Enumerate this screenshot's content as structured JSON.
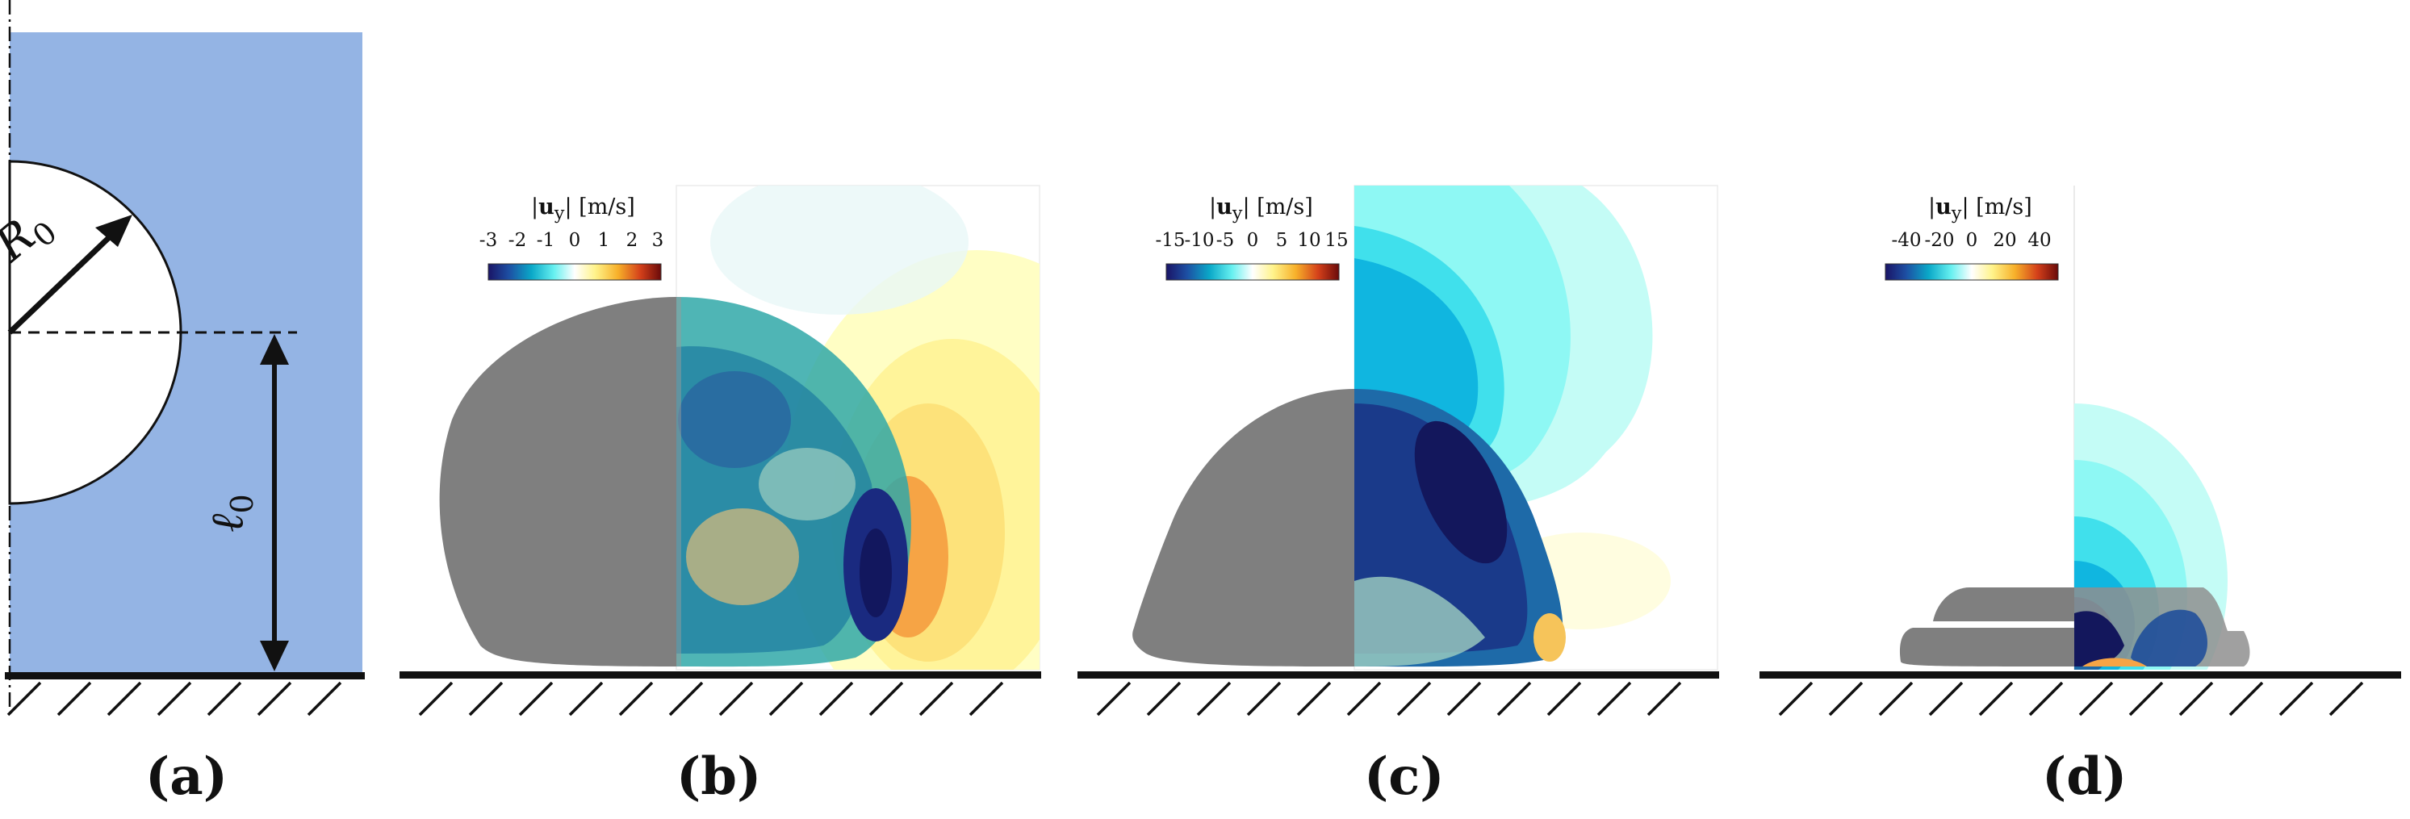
{
  "panels": {
    "a": {
      "label": "(a)",
      "radius_symbol": "R",
      "radius_sub": "0",
      "height_symbol": "ℓ",
      "height_sub": "0"
    },
    "b": {
      "label": "(b)",
      "colorbar": {
        "title_var": "u",
        "title_sub": "y",
        "unit": "[m/s]",
        "ticks": [
          "-3",
          "-2",
          "-1",
          "0",
          "1",
          "2",
          "3"
        ]
      }
    },
    "c": {
      "label": "(c)",
      "colorbar": {
        "title_var": "u",
        "title_sub": "y",
        "unit": "[m/s]",
        "ticks": [
          "-15",
          "-10",
          "-5",
          "0",
          "5",
          "10",
          "15"
        ]
      }
    },
    "d": {
      "label": "(d)",
      "colorbar": {
        "title_var": "u",
        "title_sub": "y",
        "unit": "[m/s]",
        "ticks": [
          "-40",
          "-20",
          "0",
          "20",
          "40"
        ]
      }
    }
  },
  "colors": {
    "fluid": "#94b4e4",
    "droplet": "#7f7f7f",
    "ground": "#111111"
  }
}
